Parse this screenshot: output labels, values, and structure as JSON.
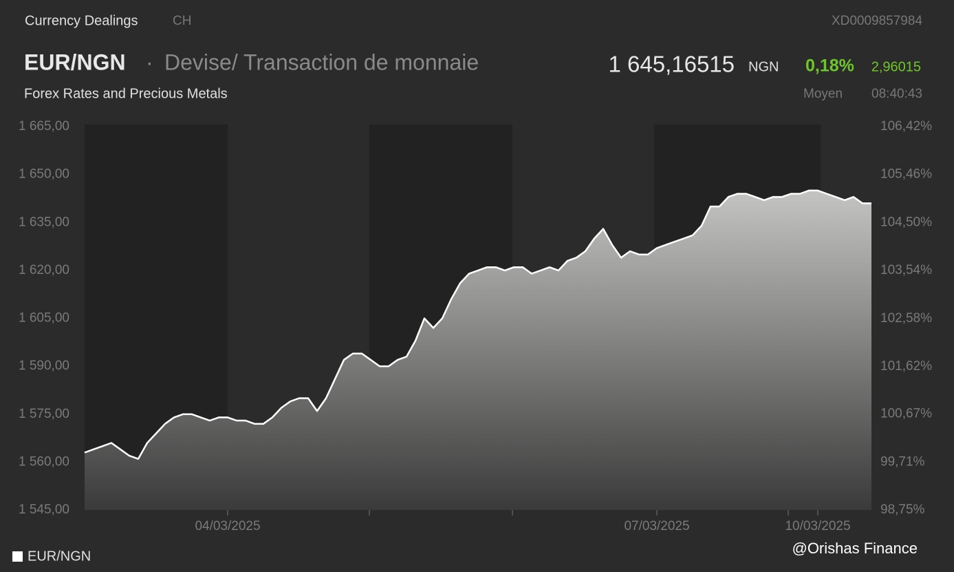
{
  "header": {
    "section": "Currency Dealings",
    "country": "CH",
    "code": "XD0009857984",
    "pair": "EUR/NGN",
    "separator": "·",
    "description": "Devise/ Transaction de monnaie",
    "price": "1 645,16515",
    "currency": "NGN",
    "change_pct": "0,18%",
    "change_abs": "2,96015",
    "category": "Forex Rates and Precious Metals",
    "price_type": "Moyen",
    "time": "08:40:43"
  },
  "watermark": "@Orishas Finance",
  "chart_data": {
    "type": "area",
    "categories": [
      null,
      null,
      null,
      null,
      null,
      null,
      null,
      null,
      null,
      null,
      null,
      null,
      null,
      null,
      null,
      null,
      "04/03/2025",
      null,
      null,
      null,
      null,
      null,
      null,
      null,
      null,
      null,
      null,
      null,
      null,
      null,
      null,
      null,
      null,
      null,
      null,
      null,
      null,
      null,
      null,
      null,
      null,
      null,
      null,
      null,
      null,
      null,
      null,
      null,
      null,
      null,
      null,
      null,
      null,
      null,
      null,
      null,
      null,
      null,
      null,
      null,
      null,
      null,
      null,
      null,
      "07/03/2025",
      null,
      null,
      null,
      null,
      null,
      null,
      null,
      null,
      null,
      null,
      null,
      null,
      null,
      null,
      null,
      null,
      null,
      "10/03/2025",
      null,
      null,
      null,
      null,
      null,
      null
    ],
    "series": [
      {
        "name": "EUR/NGN",
        "color": "#ffffff",
        "values": [
          1563,
          1564,
          1565,
          1566,
          1564,
          1562,
          1561,
          1566,
          1569,
          1572,
          1574,
          1575,
          1575,
          1574,
          1573,
          1574,
          1574,
          1573,
          1573,
          1572,
          1572,
          1574,
          1577,
          1579,
          1580,
          1580,
          1576,
          1580,
          1586,
          1592,
          1594,
          1594,
          1592,
          1590,
          1590,
          1592,
          1593,
          1598,
          1605,
          1602,
          1605,
          1611,
          1616,
          1619,
          1620,
          1621,
          1621,
          1620,
          1621,
          1621,
          1619,
          1620,
          1621,
          1620,
          1623,
          1624,
          1626,
          1630,
          1633,
          1628,
          1624,
          1626,
          1625,
          1625,
          1627,
          1628,
          1629,
          1630,
          1631,
          1634,
          1640,
          1640,
          1643,
          1644,
          1644,
          1643,
          1642,
          1643,
          1643,
          1644,
          1644,
          1645,
          1645,
          1644,
          1643,
          1642,
          1643,
          1641,
          1641
        ]
      }
    ],
    "ylim": [
      1545,
      1665
    ],
    "yticks": [
      {
        "value": 1665,
        "label": "1 665,00"
      },
      {
        "value": 1650,
        "label": "1 650,00"
      },
      {
        "value": 1635,
        "label": "1 635,00"
      },
      {
        "value": 1620,
        "label": "1 620,00"
      },
      {
        "value": 1605,
        "label": "1 605,00"
      },
      {
        "value": 1590,
        "label": "1 590,00"
      },
      {
        "value": 1575,
        "label": "1 575,00"
      },
      {
        "value": 1560,
        "label": "1 560,00"
      },
      {
        "value": 1545,
        "label": "1 545,00"
      }
    ],
    "y2lim": [
      98.75,
      106.42
    ],
    "y2ticks": [
      {
        "value": 106.42,
        "label": "106,42%"
      },
      {
        "value": 105.46,
        "label": "105,46%"
      },
      {
        "value": 104.5,
        "label": "104,50%"
      },
      {
        "value": 103.54,
        "label": "103,54%"
      },
      {
        "value": 102.58,
        "label": "102,58%"
      },
      {
        "value": 101.62,
        "label": "101,62%"
      },
      {
        "value": 100.67,
        "label": "100,67%"
      },
      {
        "value": 99.71,
        "label": "99,71%"
      },
      {
        "value": 98.75,
        "label": "98,75%"
      }
    ],
    "grid": false,
    "legend": "bottom-left"
  }
}
